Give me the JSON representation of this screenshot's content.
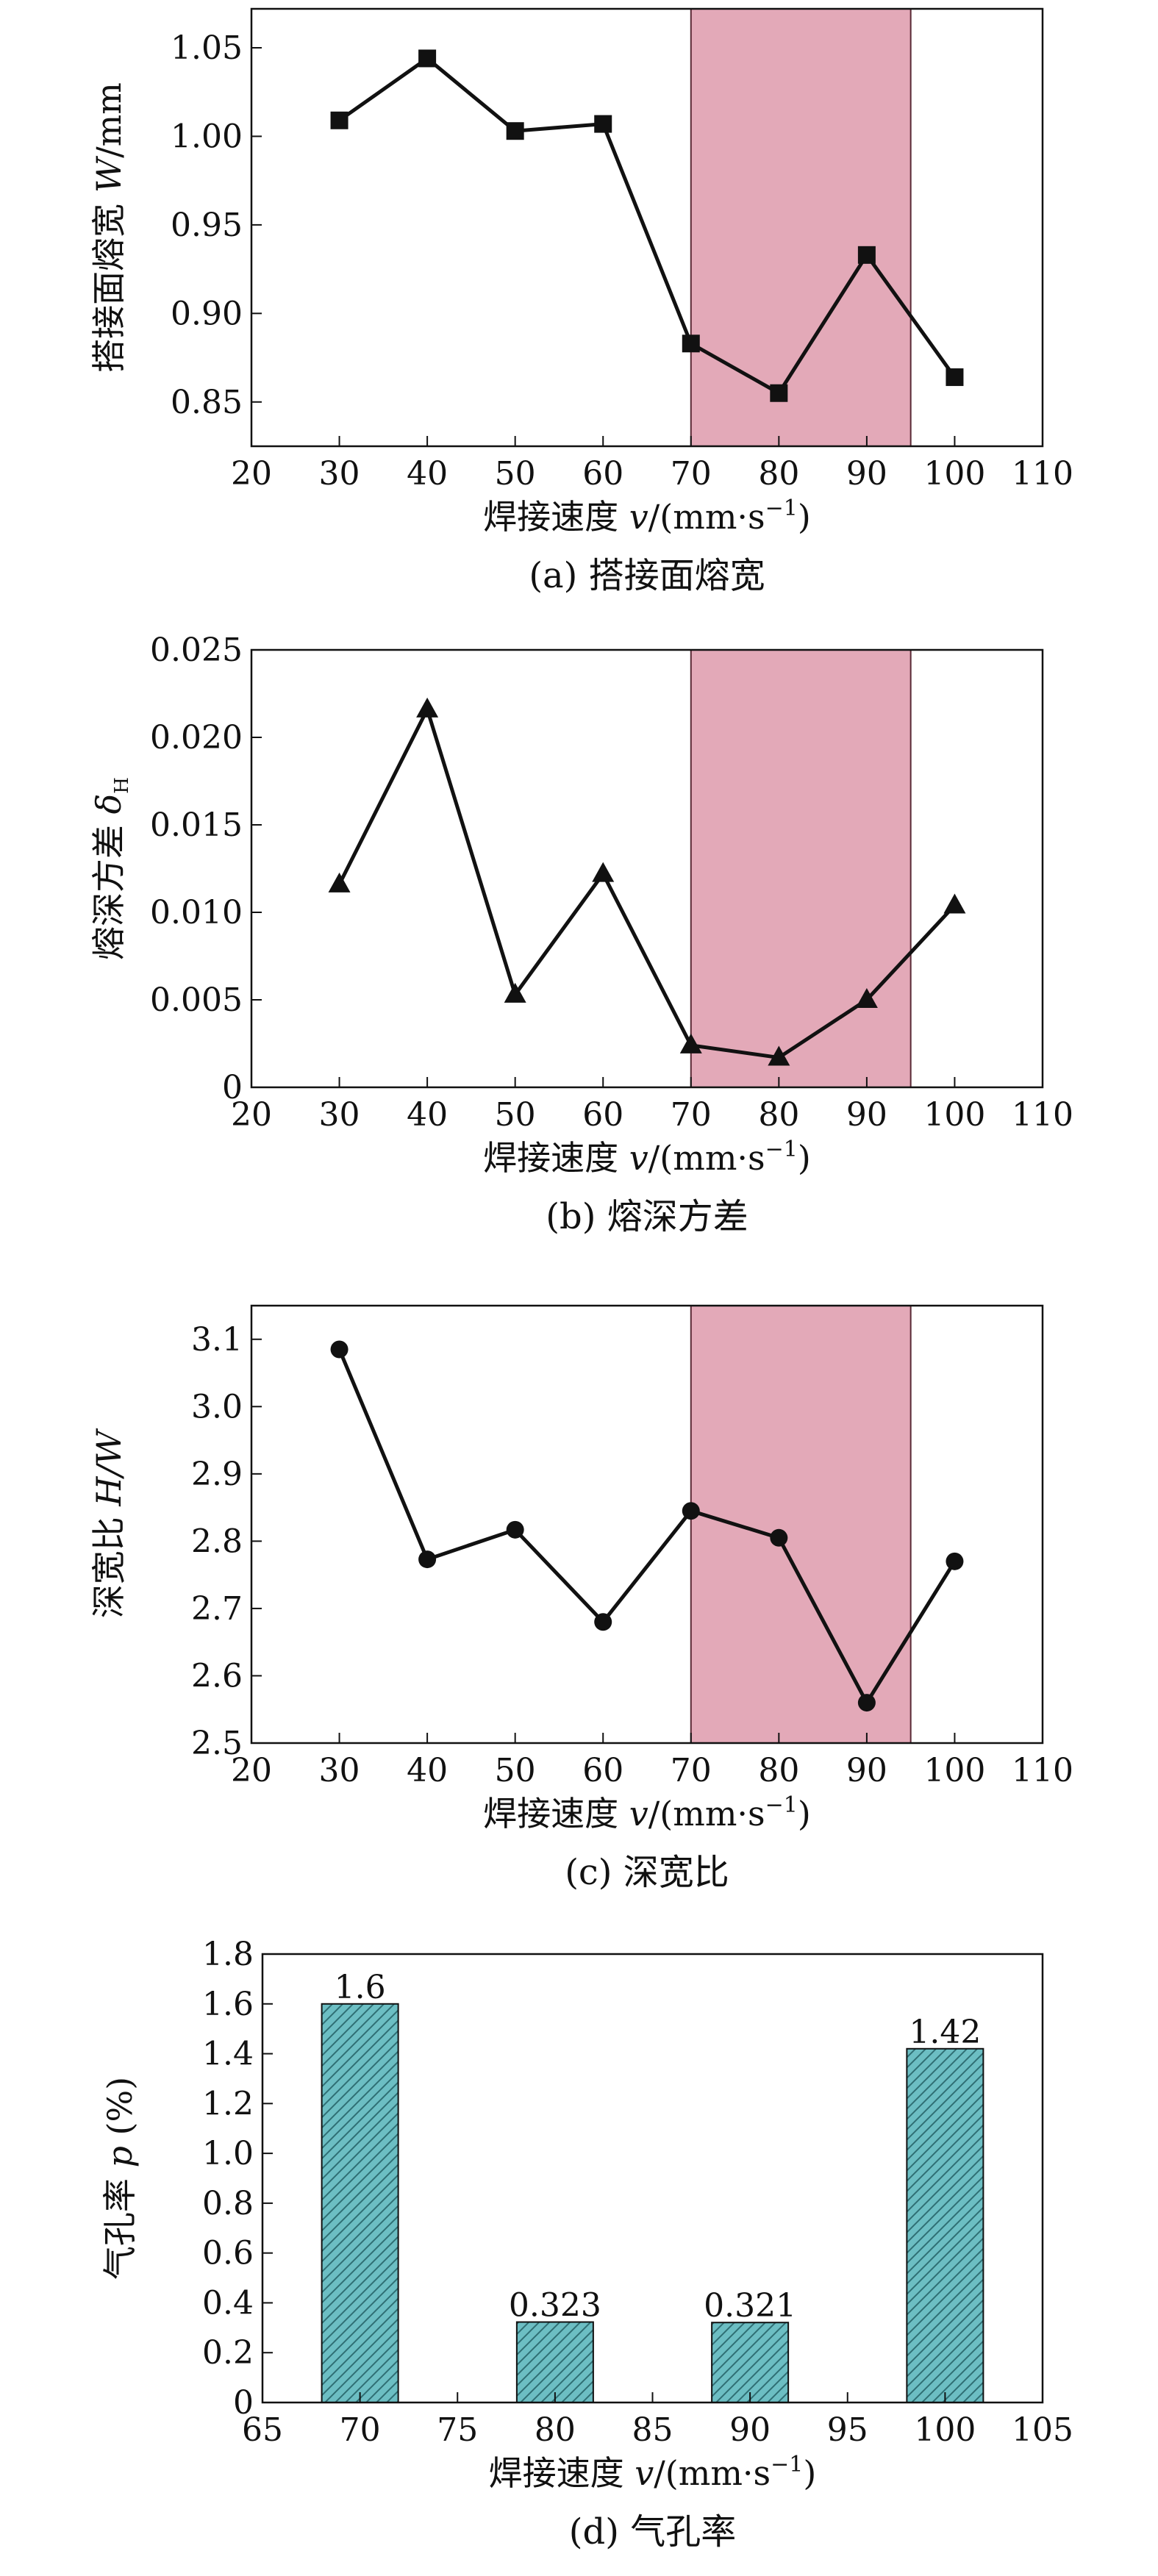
{
  "chart_data": [
    {
      "type": "line",
      "caption": "(a) 搭接面熔宽",
      "ylabel_prefix": "搭接面熔宽 ",
      "ylabel_var": "W",
      "ylabel_suffix": "/mm",
      "xlabel_prefix": "焊接速度 ",
      "xlabel_var": "v",
      "xlabel_suffix": "/(mm·s",
      "xlabel_sup": "−1",
      "xlabel_end": ")",
      "marker": "square",
      "xlim": [
        20,
        110
      ],
      "ylim": [
        0.825,
        1.072
      ],
      "xticks": [
        "20",
        "30",
        "40",
        "50",
        "60",
        "70",
        "80",
        "90",
        "100",
        "110"
      ],
      "yticks": [
        "0.85",
        "0.90",
        "0.95",
        "1.00",
        "1.05"
      ],
      "highlight": {
        "x0": 70,
        "x1": 95,
        "color": "#e3a9b8"
      },
      "x": [
        30,
        40,
        50,
        60,
        70,
        80,
        90,
        100
      ],
      "y": [
        1.009,
        1.044,
        1.003,
        1.007,
        0.883,
        0.855,
        0.933,
        0.864
      ]
    },
    {
      "type": "line",
      "caption": "(b) 熔深方差",
      "ylabel_prefix": "熔深方差 ",
      "ylabel_var": "δ",
      "ylabel_sub": "H",
      "xlabel_prefix": "焊接速度 ",
      "xlabel_var": "v",
      "xlabel_suffix": "/(mm·s",
      "xlabel_sup": "−1",
      "xlabel_end": ")",
      "marker": "triangle",
      "xlim": [
        20,
        110
      ],
      "ylim": [
        0,
        0.025
      ],
      "xticks": [
        "20",
        "30",
        "40",
        "50",
        "60",
        "70",
        "80",
        "90",
        "100",
        "110"
      ],
      "yticks": [
        "0",
        "0.005",
        "0.010",
        "0.015",
        "0.020",
        "0.025"
      ],
      "highlight": {
        "x0": 70,
        "x1": 95,
        "color": "#e3a9b8"
      },
      "x": [
        30,
        40,
        50,
        60,
        70,
        80,
        90,
        100
      ],
      "y": [
        0.0116,
        0.0216,
        0.0053,
        0.0122,
        0.0024,
        0.0017,
        0.005,
        0.0104
      ]
    },
    {
      "type": "line",
      "caption": "(c) 深宽比",
      "ylabel_prefix": "深宽比 ",
      "ylabel_var": "H/W",
      "xlabel_prefix": "焊接速度 ",
      "xlabel_var": "v",
      "xlabel_suffix": "/(mm·s",
      "xlabel_sup": "−1",
      "xlabel_end": ")",
      "marker": "circle",
      "xlim": [
        20,
        110
      ],
      "ylim": [
        2.5,
        3.15
      ],
      "xticks": [
        "20",
        "30",
        "40",
        "50",
        "60",
        "70",
        "80",
        "90",
        "100",
        "110"
      ],
      "yticks": [
        "2.5",
        "2.6",
        "2.7",
        "2.8",
        "2.9",
        "3.0",
        "3.1"
      ],
      "highlight": {
        "x0": 70,
        "x1": 95,
        "color": "#e3a9b8"
      },
      "x": [
        30,
        40,
        50,
        60,
        70,
        80,
        90,
        100
      ],
      "y": [
        3.085,
        2.773,
        2.817,
        2.68,
        2.845,
        2.805,
        2.56,
        2.77
      ]
    },
    {
      "type": "bar",
      "caption": "(d) 气孔率",
      "ylabel_prefix": "气孔率 ",
      "ylabel_var": "p",
      "ylabel_suffix": " (%)",
      "xlabel_prefix": "焊接速度 ",
      "xlabel_var": "v",
      "xlabel_suffix": "/(mm·s",
      "xlabel_sup": "−1",
      "xlabel_end": ")",
      "xlim": [
        65,
        105
      ],
      "ylim": [
        0,
        1.8
      ],
      "xticks": [
        "65",
        "70",
        "75",
        "80",
        "85",
        "90",
        "95",
        "100",
        "105"
      ],
      "yticks": [
        "0",
        "0.2",
        "0.4",
        "0.6",
        "0.8",
        "1.0",
        "1.2",
        "1.4",
        "1.6",
        "1.8"
      ],
      "bar_color": "#6cbec3",
      "x": [
        70,
        80,
        90,
        100
      ],
      "values": [
        1.6,
        0.323,
        0.321,
        1.42
      ],
      "labels": [
        "1.6",
        "0.323",
        "0.321",
        "1.42"
      ]
    }
  ]
}
